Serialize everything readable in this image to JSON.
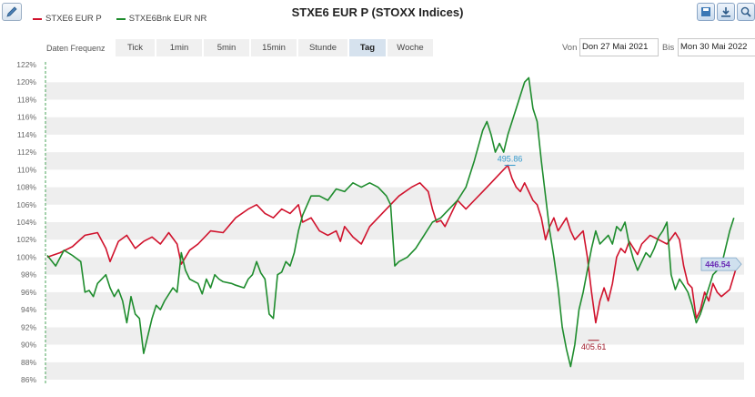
{
  "header": {
    "title": "STXE6 EUR P (STOXX Indices)",
    "legend": [
      {
        "label": "STXE6 EUR P",
        "color": "#d0122c"
      },
      {
        "label": "STXE6Bnk EUR NR",
        "color": "#1e8c2d"
      }
    ],
    "tools": [
      "save-image-icon",
      "download-icon",
      "zoom-icon"
    ]
  },
  "frequency": {
    "label": "Daten Frequenz",
    "tabs": [
      "Tick",
      "1min",
      "5min",
      "15min",
      "Stunde",
      "Tag",
      "Woche"
    ],
    "active": "Tag"
  },
  "range": {
    "from_label": "Von",
    "from_value": "Don 27 Mai 2021",
    "to_label": "Bis",
    "to_value": "Mon 30 Mai 2022"
  },
  "chart_data": {
    "type": "line",
    "ylim": [
      86,
      122
    ],
    "yticks": [
      "122%",
      "120%",
      "118%",
      "116%",
      "114%",
      "112%",
      "110%",
      "108%",
      "106%",
      "104%",
      "102%",
      "100%",
      "98%",
      "96%",
      "94%",
      "92%",
      "90%",
      "88%",
      "86%"
    ],
    "x_range": [
      "2021-05-27",
      "2022-05-30"
    ],
    "grid": true,
    "series": [
      {
        "name": "STXE6 EUR P",
        "color": "#d0122c",
        "points": [
          [
            0,
            100
          ],
          [
            3,
            100.5
          ],
          [
            6,
            101.2
          ],
          [
            9,
            102.5
          ],
          [
            12,
            102.8
          ],
          [
            14,
            101
          ],
          [
            15,
            99.5
          ],
          [
            17,
            101.8
          ],
          [
            19,
            102.5
          ],
          [
            21,
            101
          ],
          [
            23,
            101.8
          ],
          [
            25,
            102.3
          ],
          [
            27,
            101.5
          ],
          [
            29,
            102.8
          ],
          [
            31,
            101.5
          ],
          [
            32,
            99.2
          ],
          [
            34,
            100.8
          ],
          [
            36,
            101.5
          ],
          [
            39,
            103
          ],
          [
            42,
            102.8
          ],
          [
            45,
            104.5
          ],
          [
            48,
            105.5
          ],
          [
            50,
            106
          ],
          [
            52,
            105
          ],
          [
            54,
            104.5
          ],
          [
            56,
            105.5
          ],
          [
            58,
            105
          ],
          [
            60,
            106
          ],
          [
            61,
            104
          ],
          [
            63,
            104.5
          ],
          [
            65,
            103
          ],
          [
            67,
            102.5
          ],
          [
            69,
            103
          ],
          [
            70,
            101.8
          ],
          [
            71,
            103.5
          ],
          [
            73,
            102.3
          ],
          [
            75,
            101.5
          ],
          [
            77,
            103.5
          ],
          [
            79,
            104.5
          ],
          [
            81,
            105.5
          ],
          [
            84,
            107
          ],
          [
            87,
            108
          ],
          [
            89,
            108.5
          ],
          [
            91,
            107.5
          ],
          [
            92,
            105.5
          ],
          [
            93,
            104
          ],
          [
            94,
            104.2
          ],
          [
            95,
            103.5
          ],
          [
            96,
            104.5
          ],
          [
            98,
            106.5
          ],
          [
            100,
            105.5
          ],
          [
            102,
            106.5
          ],
          [
            104,
            107.5
          ],
          [
            106,
            108.5
          ],
          [
            108,
            109.5
          ],
          [
            110,
            110.5
          ],
          [
            111,
            109
          ],
          [
            112,
            108
          ],
          [
            113,
            107.5
          ],
          [
            114,
            108.5
          ],
          [
            115,
            107.5
          ],
          [
            116,
            106.5
          ],
          [
            117,
            106
          ],
          [
            118,
            104.5
          ],
          [
            119,
            102
          ],
          [
            120,
            103.5
          ],
          [
            121,
            104.5
          ],
          [
            122,
            103
          ],
          [
            124,
            104.5
          ],
          [
            125,
            103
          ],
          [
            126,
            102
          ],
          [
            128,
            103
          ],
          [
            129,
            100
          ],
          [
            130,
            96
          ],
          [
            131,
            92.5
          ],
          [
            132,
            95
          ],
          [
            133,
            96.5
          ],
          [
            134,
            95
          ],
          [
            135,
            97
          ],
          [
            136,
            100
          ],
          [
            137,
            101
          ],
          [
            138,
            100.5
          ],
          [
            139,
            101.8
          ],
          [
            141,
            100.3
          ],
          [
            142,
            101.5
          ],
          [
            144,
            102.5
          ],
          [
            146,
            102
          ],
          [
            148,
            101.5
          ],
          [
            150,
            102.8
          ],
          [
            151,
            102
          ],
          [
            152,
            99
          ],
          [
            153,
            97
          ],
          [
            154,
            96.5
          ],
          [
            155,
            93
          ],
          [
            156,
            94
          ],
          [
            157,
            96
          ],
          [
            158,
            95
          ],
          [
            159,
            97
          ],
          [
            160,
            96
          ],
          [
            161,
            95.5
          ],
          [
            163,
            96.3
          ],
          [
            165,
            99.5
          ]
        ]
      },
      {
        "name": "STXE6Bnk EUR NR",
        "color": "#1e8c2d",
        "points": [
          [
            0,
            100.2
          ],
          [
            2,
            99
          ],
          [
            4,
            100.8
          ],
          [
            6,
            100.2
          ],
          [
            8,
            99.5
          ],
          [
            9,
            96
          ],
          [
            10,
            96.2
          ],
          [
            11,
            95.5
          ],
          [
            12,
            97
          ],
          [
            14,
            98
          ],
          [
            15,
            96.5
          ],
          [
            16,
            95.5
          ],
          [
            17,
            96.3
          ],
          [
            18,
            95
          ],
          [
            19,
            92.5
          ],
          [
            20,
            95.5
          ],
          [
            21,
            93.5
          ],
          [
            22,
            93
          ],
          [
            23,
            89
          ],
          [
            24,
            91
          ],
          [
            25,
            93
          ],
          [
            26,
            94.5
          ],
          [
            27,
            94
          ],
          [
            28,
            95
          ],
          [
            30,
            96.5
          ],
          [
            31,
            96
          ],
          [
            32,
            100.5
          ],
          [
            33,
            98.5
          ],
          [
            34,
            97.5
          ],
          [
            36,
            97
          ],
          [
            37,
            95.8
          ],
          [
            38,
            97.5
          ],
          [
            39,
            96.5
          ],
          [
            40,
            98
          ],
          [
            41,
            97.5
          ],
          [
            42,
            97.2
          ],
          [
            44,
            97
          ],
          [
            45,
            96.8
          ],
          [
            47,
            96.5
          ],
          [
            48,
            97.5
          ],
          [
            49,
            98
          ],
          [
            50,
            99.5
          ],
          [
            51,
            98.2
          ],
          [
            52,
            97.5
          ],
          [
            53,
            93.5
          ],
          [
            54,
            93
          ],
          [
            55,
            98
          ],
          [
            56,
            98.3
          ],
          [
            57,
            99.5
          ],
          [
            58,
            99
          ],
          [
            59,
            100.5
          ],
          [
            60,
            103
          ],
          [
            61,
            104.8
          ],
          [
            63,
            107
          ],
          [
            65,
            107
          ],
          [
            67,
            106.5
          ],
          [
            69,
            107.8
          ],
          [
            71,
            107.5
          ],
          [
            73,
            108.5
          ],
          [
            75,
            108
          ],
          [
            77,
            108.5
          ],
          [
            79,
            108
          ],
          [
            81,
            107
          ],
          [
            82,
            106
          ],
          [
            83,
            99
          ],
          [
            84,
            99.5
          ],
          [
            86,
            100
          ],
          [
            88,
            101
          ],
          [
            90,
            102.5
          ],
          [
            92,
            104
          ],
          [
            94,
            104.5
          ],
          [
            96,
            105.5
          ],
          [
            98,
            106.5
          ],
          [
            100,
            108
          ],
          [
            102,
            111
          ],
          [
            104,
            114.5
          ],
          [
            105,
            115.5
          ],
          [
            106,
            114
          ],
          [
            107,
            112
          ],
          [
            108,
            113
          ],
          [
            109,
            112
          ],
          [
            110,
            114
          ],
          [
            111,
            115.5
          ],
          [
            112,
            117
          ],
          [
            113,
            118.5
          ],
          [
            114,
            120
          ],
          [
            115,
            120.5
          ],
          [
            116,
            117
          ],
          [
            117,
            115.5
          ],
          [
            118,
            111
          ],
          [
            119,
            107
          ],
          [
            120,
            103
          ],
          [
            121,
            100
          ],
          [
            122,
            96.5
          ],
          [
            123,
            92
          ],
          [
            124,
            89.5
          ],
          [
            125,
            87.5
          ],
          [
            126,
            90
          ],
          [
            127,
            94
          ],
          [
            128,
            96
          ],
          [
            129,
            98.5
          ],
          [
            130,
            101
          ],
          [
            131,
            103
          ],
          [
            132,
            101.5
          ],
          [
            133,
            102
          ],
          [
            134,
            102.5
          ],
          [
            135,
            101.5
          ],
          [
            136,
            103.5
          ],
          [
            137,
            103
          ],
          [
            138,
            104
          ],
          [
            139,
            101.5
          ],
          [
            140,
            99.8
          ],
          [
            141,
            98.5
          ],
          [
            142,
            99.5
          ],
          [
            143,
            100.5
          ],
          [
            144,
            100
          ],
          [
            145,
            101
          ],
          [
            146,
            102.3
          ],
          [
            147,
            103
          ],
          [
            148,
            104
          ],
          [
            149,
            98
          ],
          [
            150,
            96.3
          ],
          [
            151,
            97.5
          ],
          [
            152,
            96.8
          ],
          [
            153,
            96
          ],
          [
            154,
            94.5
          ],
          [
            155,
            92.5
          ],
          [
            156,
            93.5
          ],
          [
            157,
            95
          ],
          [
            158,
            96.5
          ],
          [
            159,
            98
          ],
          [
            160,
            98.5
          ],
          [
            161,
            99
          ],
          [
            162,
            101
          ],
          [
            163,
            103
          ],
          [
            164,
            104.5
          ]
        ]
      }
    ],
    "annotations": [
      {
        "label": "495.86",
        "color": "#3399cc",
        "x": 110.5,
        "y": 110.5
      },
      {
        "label": "405.61",
        "color": "#a01a2a",
        "x": 130.5,
        "y": 90.5
      }
    ],
    "last_value": {
      "label": "446.54",
      "y": 99.2
    }
  }
}
